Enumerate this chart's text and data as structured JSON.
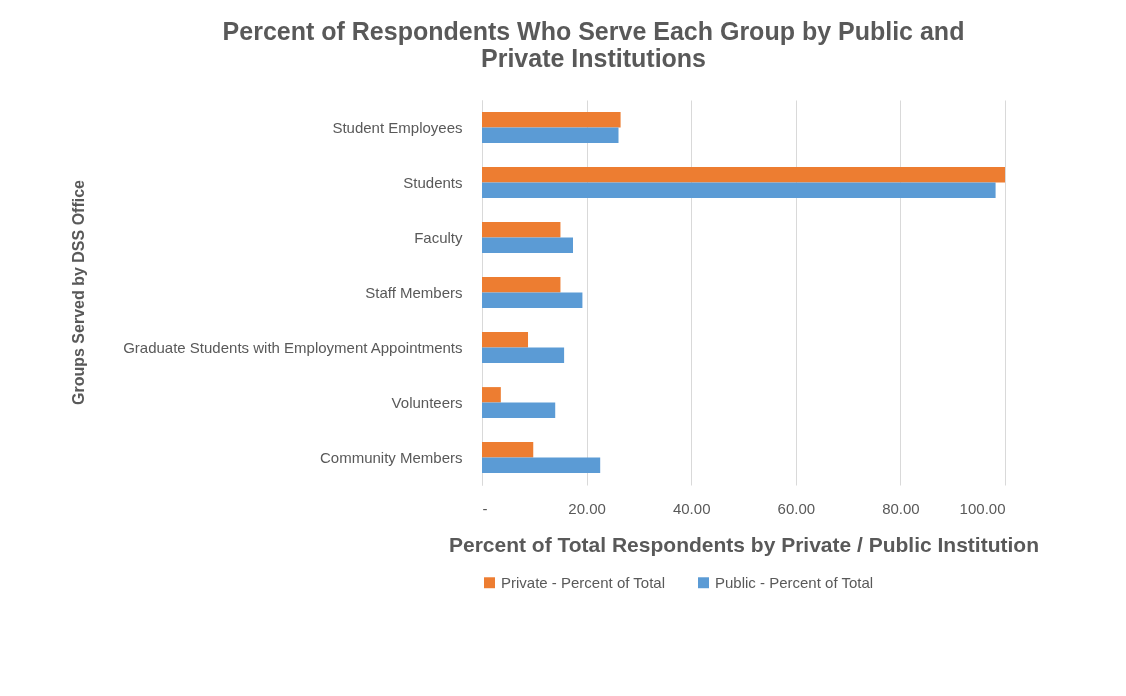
{
  "chart_data": {
    "type": "bar",
    "orientation": "horizontal",
    "title": "Percent of Respondents Who Serve Each Group by Public and Private Institutions",
    "xlabel": "Percent of Total Respondents by Private / Public Institution",
    "ylabel": "Groups Served by DSS Office",
    "categories": [
      "Student Employees",
      "Students",
      "Faculty",
      "Staff Members",
      "Graduate Students with Employment Appointments",
      "Volunteers",
      "Community Members"
    ],
    "series": [
      {
        "name": "Private - Percent of Total",
        "color": "#ed7d31",
        "values": [
          26.5,
          100,
          15.0,
          15.0,
          8.8,
          3.6,
          9.8
        ]
      },
      {
        "name": "Public - Percent of Total",
        "color": "#5b9bd5",
        "values": [
          26.1,
          98.2,
          17.4,
          19.2,
          15.7,
          14.0,
          22.6
        ]
      }
    ],
    "xlim": [
      0,
      100
    ],
    "xticks": [
      {
        "value": 0,
        "label": "-"
      },
      {
        "value": 20,
        "label": "20.00"
      },
      {
        "value": 40,
        "label": "40.00"
      },
      {
        "value": 60,
        "label": "60.00"
      },
      {
        "value": 80,
        "label": "80.00"
      },
      {
        "value": 100,
        "label": "100.00"
      }
    ],
    "grid": "x",
    "legend": "bottom"
  }
}
